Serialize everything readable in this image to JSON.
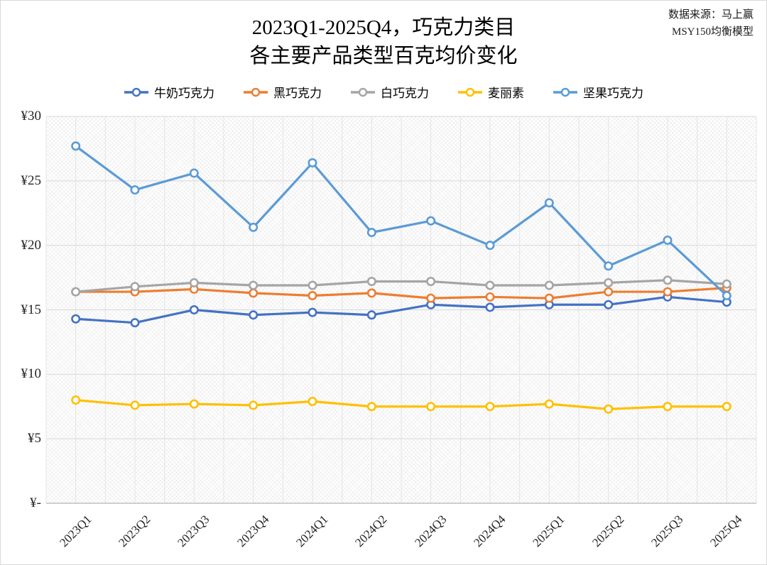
{
  "title": {
    "line1": "2023Q1-2025Q4，巧克力类目",
    "line2": "各主要产品类型百克均价变化"
  },
  "source": {
    "line1": "数据来源：马上赢",
    "line2": "MSY150均衡模型"
  },
  "chart_data": {
    "type": "line",
    "title": "2023Q1-2025Q4，巧克力类目 各主要产品类型百克均价变化",
    "categories": [
      "2023Q1",
      "2023Q2",
      "2023Q3",
      "2023Q4",
      "2024Q1",
      "2024Q2",
      "2024Q3",
      "2024Q4",
      "2025Q1",
      "2025Q2",
      "2025Q3",
      "2025Q4"
    ],
    "series": [
      {
        "name": "牛奶巧克力",
        "color": "#4472C4",
        "values": [
          14.3,
          14.0,
          15.0,
          14.6,
          14.8,
          14.6,
          15.4,
          15.2,
          15.4,
          15.4,
          16.0,
          15.6
        ]
      },
      {
        "name": "黑巧克力",
        "color": "#ED7D31",
        "values": [
          16.4,
          16.4,
          16.6,
          16.3,
          16.1,
          16.3,
          15.9,
          16.0,
          15.9,
          16.4,
          16.4,
          16.7
        ]
      },
      {
        "name": "白巧克力",
        "color": "#A5A5A5",
        "values": [
          16.4,
          16.8,
          17.1,
          16.9,
          16.9,
          17.2,
          17.2,
          16.9,
          16.9,
          17.1,
          17.3,
          17.0
        ]
      },
      {
        "name": "麦丽素",
        "color": "#FFC000",
        "values": [
          8.0,
          7.6,
          7.7,
          7.6,
          7.9,
          7.5,
          7.5,
          7.5,
          7.7,
          7.3,
          7.5,
          7.5
        ]
      },
      {
        "name": "坚果巧克力",
        "color": "#5B9BD5",
        "values": [
          27.7,
          24.3,
          25.6,
          21.4,
          26.4,
          21.0,
          21.9,
          20.0,
          23.3,
          18.4,
          20.4,
          16.1
        ]
      }
    ],
    "y_ticks": [
      {
        "value": 30,
        "label": "¥30"
      },
      {
        "value": 25,
        "label": "¥25"
      },
      {
        "value": 20,
        "label": "¥20"
      },
      {
        "value": 15,
        "label": "¥15"
      },
      {
        "value": 10,
        "label": "¥10"
      },
      {
        "value": 5,
        "label": "¥5"
      },
      {
        "value": 0,
        "label": "¥-"
      }
    ],
    "ylim": [
      0,
      30
    ],
    "grid": true,
    "legend_position": "top",
    "marker": "open-circle"
  }
}
